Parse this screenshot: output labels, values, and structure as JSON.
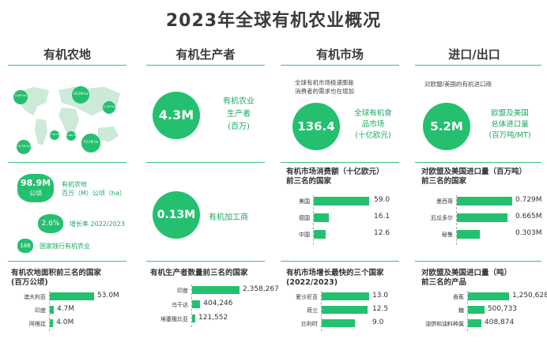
{
  "title": "2023年全球有机农业概况",
  "columns": [
    "有机农地",
    "有机生产者",
    "有机市场",
    "进口/出口"
  ],
  "land": {
    "map_bubbles": [
      "3.4M ha",
      "19.5M ha",
      "5.1M ha",
      "15.3M ha",
      "2.4M ha",
      "53.2M ha",
      "4.9M ha"
    ],
    "area_value": "98.9M",
    "area_unit": "公顷",
    "area_desc": "有机农地\n百万（M）公顷（ha）",
    "growth_value": "2.6%",
    "growth_desc": "增长率 2022/2023",
    "countries_value": "188",
    "countries_desc": "国家践行有机农业"
  },
  "producers": {
    "value1": "4.3M",
    "desc1": "有机农业\n生产者\n(百万)",
    "value2": "0.13M",
    "desc2": "有机加工商"
  },
  "market": {
    "intro": "全球有机市场极速膨胀\n消费者的需求也在增加",
    "value": "136.4",
    "desc": "全球有机食\n品市场\n(十亿欧元)"
  },
  "trade": {
    "intro": "对欧盟/美国的有机进口商",
    "value": "5.2M",
    "desc": "欧盟及美国\n总体进口量\n(百万吨/MT)"
  },
  "chart_data": [
    {
      "type": "bar",
      "title": "有机农地面积前三名的国家\n(百万公顷)",
      "categories": [
        "澳大利亚",
        "印度",
        "阿根廷"
      ],
      "values": [
        53.0,
        4.7,
        4.0
      ],
      "value_labels": [
        "53.0M",
        "4.7M",
        "4.0M"
      ]
    },
    {
      "type": "bar",
      "title": "有机生产者数量前三名的国家",
      "categories": [
        "印度",
        "乌干达",
        "埃塞俄比亚"
      ],
      "values": [
        2358267,
        404246,
        121552
      ],
      "value_labels": [
        "2,358,267",
        "404,246",
        "121,552"
      ]
    },
    {
      "type": "bar",
      "title": "有机市场消费额（十亿欧元）\n前三名的国家",
      "categories": [
        "美国",
        "德国",
        "中国"
      ],
      "values": [
        59.0,
        16.1,
        12.6
      ],
      "value_labels": [
        "59.0",
        "16.1",
        "12.6"
      ]
    },
    {
      "type": "bar",
      "title": "对欧盟及美国进口量（百万吨）\n前三名的国家",
      "categories": [
        "墨西哥",
        "厄瓜多尔",
        "秘鲁"
      ],
      "values": [
        0.729,
        0.665,
        0.303
      ],
      "value_labels": [
        "0.729M",
        "0.665M",
        "0.303M"
      ]
    },
    {
      "type": "bar",
      "title": "有机市场增长最快的三个国家\n(2022/2023)",
      "categories": [
        "爱沙尼亚",
        "荷兰",
        "比利时"
      ],
      "values": [
        13.0,
        12.5,
        9.0
      ],
      "value_labels": [
        "13.0",
        "12.5",
        "9.0"
      ]
    },
    {
      "type": "bar",
      "title": "对欧盟及美国进口量（吨）\n前三名的产品",
      "categories": [
        "香蕉",
        "糖",
        "油饼和油料种属"
      ],
      "values": [
        1250628,
        500733,
        408874
      ],
      "value_labels": [
        "1,250,628",
        "500,733",
        "408,874"
      ]
    }
  ]
}
